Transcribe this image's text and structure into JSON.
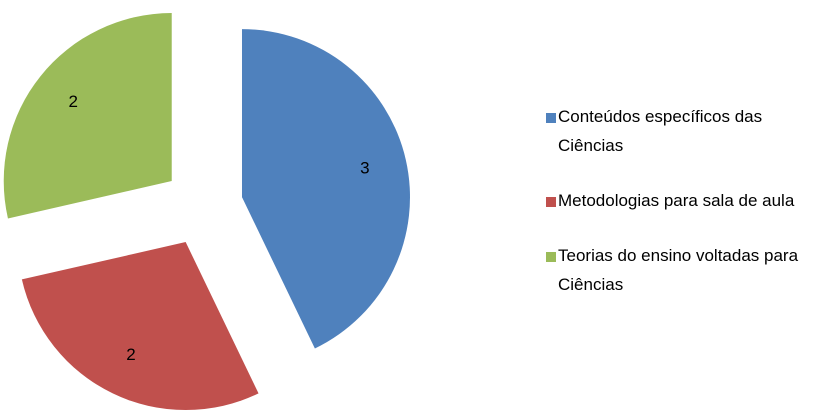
{
  "chart_data": {
    "type": "pie",
    "exploded": true,
    "categories": [
      "Conteúdos específicos das Ciências",
      "Metodologias para sala de aula",
      "Teorias do ensino voltadas para Ciências"
    ],
    "values": [
      3,
      2,
      2
    ],
    "colors": [
      "#4f81bd",
      "#c0504d",
      "#9bbb59"
    ],
    "legend": "right"
  }
}
